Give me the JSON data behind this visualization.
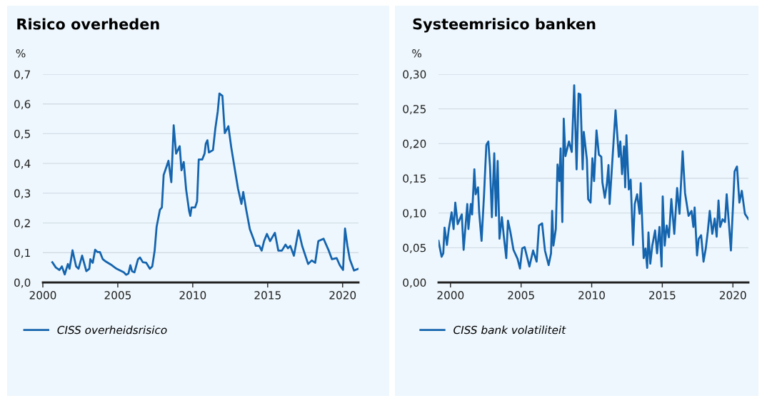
{
  "chart_data": [
    {
      "type": "line",
      "title": "Risico overheden",
      "ylabel": "%",
      "grid": "y",
      "legend": "bottom left",
      "marker": "none",
      "line_style": "solid",
      "xlim": [
        2000,
        2021.06
      ],
      "xticks": [
        2000,
        2005,
        2010,
        2015,
        2020
      ],
      "ylim": [
        0,
        0.7
      ],
      "yticks": [
        {
          "value": 0,
          "label": "0,0"
        },
        {
          "value": 0.1,
          "label": "0,1"
        },
        {
          "value": 0.2,
          "label": "0,2"
        },
        {
          "value": 0.3,
          "label": "0,3"
        },
        {
          "value": 0.4,
          "label": "0,4"
        },
        {
          "value": 0.5,
          "label": "0,5"
        },
        {
          "value": 0.6,
          "label": "0,6"
        },
        {
          "value": 0.7,
          "label": "0,7"
        }
      ],
      "series": [
        {
          "name": "CISS overheidsrisico",
          "color": "#1464ae",
          "x": [
            2000.63,
            2000.87,
            2001.11,
            2001.27,
            2001.46,
            2001.67,
            2001.78,
            2001.98,
            2002.22,
            2002.38,
            2002.62,
            2002.75,
            2002.9,
            2003.1,
            2003.17,
            2003.33,
            2003.49,
            2003.65,
            2003.81,
            2004.0,
            2004.21,
            2004.6,
            2004.92,
            2005.4,
            2005.56,
            2005.71,
            2005.84,
            2005.95,
            2006.11,
            2006.35,
            2006.48,
            2006.67,
            2006.9,
            2007.14,
            2007.3,
            2007.46,
            2007.59,
            2007.81,
            2007.94,
            2008.06,
            2008.25,
            2008.38,
            2008.57,
            2008.73,
            2008.89,
            2009.13,
            2009.25,
            2009.4,
            2009.56,
            2009.76,
            2009.84,
            2009.92,
            2010.16,
            2010.29,
            2010.4,
            2010.63,
            2010.79,
            2010.87,
            2010.98,
            2011.08,
            2011.35,
            2011.51,
            2011.67,
            2011.78,
            2011.98,
            2012.14,
            2012.38,
            2012.57,
            2012.78,
            2013.02,
            2013.25,
            2013.37,
            2013.57,
            2013.81,
            2014.05,
            2014.21,
            2014.44,
            2014.6,
            2014.76,
            2014.95,
            2015.16,
            2015.48,
            2015.71,
            2015.95,
            2016.19,
            2016.35,
            2016.51,
            2016.75,
            2017.06,
            2017.3,
            2017.7,
            2017.94,
            2018.17,
            2018.38,
            2018.73,
            2019.05,
            2019.29,
            2019.6,
            2019.81,
            2020.03,
            2020.16,
            2020.32,
            2020.48,
            2020.76,
            2021.06
          ],
          "values": [
            0.068,
            0.05,
            0.042,
            0.054,
            0.027,
            0.062,
            0.046,
            0.108,
            0.054,
            0.046,
            0.09,
            0.066,
            0.038,
            0.046,
            0.078,
            0.066,
            0.11,
            0.102,
            0.102,
            0.078,
            0.07,
            0.058,
            0.046,
            0.034,
            0.026,
            0.03,
            0.058,
            0.038,
            0.034,
            0.078,
            0.084,
            0.068,
            0.066,
            0.046,
            0.054,
            0.107,
            0.187,
            0.244,
            0.252,
            0.361,
            0.389,
            0.409,
            0.337,
            0.528,
            0.433,
            0.458,
            0.377,
            0.405,
            0.312,
            0.24,
            0.224,
            0.252,
            0.252,
            0.272,
            0.413,
            0.413,
            0.433,
            0.466,
            0.478,
            0.437,
            0.445,
            0.518,
            0.575,
            0.635,
            0.627,
            0.502,
            0.525,
            0.454,
            0.389,
            0.316,
            0.264,
            0.304,
            0.244,
            0.179,
            0.147,
            0.123,
            0.123,
            0.107,
            0.139,
            0.163,
            0.139,
            0.167,
            0.107,
            0.107,
            0.127,
            0.115,
            0.123,
            0.09,
            0.175,
            0.123,
            0.062,
            0.074,
            0.066,
            0.139,
            0.147,
            0.11,
            0.078,
            0.082,
            0.058,
            0.042,
            0.181,
            0.123,
            0.078,
            0.04,
            0.046
          ]
        }
      ]
    },
    {
      "type": "line",
      "title": "Systeemrisico banken",
      "ylabel": "%",
      "grid": "y",
      "legend": "bottom left",
      "marker": "none",
      "line_style": "solid",
      "xlim": [
        1999.15,
        2021.1
      ],
      "xticks": [
        2000,
        2005,
        2010,
        2015,
        2020
      ],
      "ylim": [
        0,
        0.3
      ],
      "yticks": [
        {
          "value": 0,
          "label": "0,00"
        },
        {
          "value": 0.05,
          "label": "0,05"
        },
        {
          "value": 0.1,
          "label": "0,10"
        },
        {
          "value": 0.15,
          "label": "0,15"
        },
        {
          "value": 0.2,
          "label": "0,20"
        },
        {
          "value": 0.25,
          "label": "0,25"
        },
        {
          "value": 0.3,
          "label": "0,30"
        }
      ],
      "series": [
        {
          "name": "CISS bank volatiliteit",
          "color": "#1464ae",
          "x": [
            1999.15,
            1999.37,
            1999.49,
            1999.58,
            1999.75,
            1999.88,
            2000.08,
            2000.22,
            2000.34,
            2000.51,
            2000.8,
            2000.93,
            2001.19,
            2001.27,
            2001.44,
            2001.53,
            2001.69,
            2001.78,
            2001.95,
            2002.03,
            2002.2,
            2002.37,
            2002.54,
            2002.68,
            2002.8,
            2002.93,
            2003.1,
            2003.22,
            2003.34,
            2003.47,
            2003.64,
            2003.78,
            2003.95,
            2004.07,
            2004.24,
            2004.46,
            2004.75,
            2004.92,
            2005.08,
            2005.25,
            2005.59,
            2005.85,
            2006.1,
            2006.27,
            2006.49,
            2006.69,
            2006.95,
            2007.12,
            2007.2,
            2007.29,
            2007.46,
            2007.58,
            2007.71,
            2007.8,
            2007.92,
            2008.02,
            2008.14,
            2008.39,
            2008.59,
            2008.76,
            2008.93,
            2009.07,
            2009.2,
            2009.36,
            2009.44,
            2009.66,
            2009.75,
            2009.92,
            2010.05,
            2010.17,
            2010.34,
            2010.51,
            2010.68,
            2010.76,
            2010.93,
            2011.07,
            2011.19,
            2011.27,
            2011.69,
            2011.92,
            2012.03,
            2012.15,
            2012.29,
            2012.37,
            2012.46,
            2012.63,
            2012.76,
            2012.93,
            2013.05,
            2013.22,
            2013.39,
            2013.47,
            2013.68,
            2013.81,
            2013.93,
            2014.02,
            2014.15,
            2014.29,
            2014.49,
            2014.63,
            2014.8,
            2014.95,
            2015.03,
            2015.17,
            2015.31,
            2015.47,
            2015.64,
            2015.85,
            2016.05,
            2016.22,
            2016.44,
            2016.61,
            2016.86,
            2017.07,
            2017.2,
            2017.29,
            2017.46,
            2017.58,
            2017.75,
            2017.92,
            2018.08,
            2018.22,
            2018.36,
            2018.54,
            2018.71,
            2018.85,
            2018.98,
            2019.1,
            2019.27,
            2019.44,
            2019.56,
            2019.86,
            2020.12,
            2020.29,
            2020.46,
            2020.63,
            2020.85,
            2021.1
          ],
          "values": [
            0.06,
            0.037,
            0.042,
            0.079,
            0.054,
            0.077,
            0.101,
            0.077,
            0.115,
            0.084,
            0.098,
            0.047,
            0.113,
            0.077,
            0.113,
            0.098,
            0.163,
            0.127,
            0.137,
            0.101,
            0.06,
            0.124,
            0.198,
            0.203,
            0.167,
            0.094,
            0.186,
            0.096,
            0.175,
            0.063,
            0.094,
            0.066,
            0.035,
            0.089,
            0.073,
            0.047,
            0.034,
            0.02,
            0.049,
            0.051,
            0.023,
            0.046,
            0.03,
            0.082,
            0.085,
            0.046,
            0.025,
            0.042,
            0.103,
            0.053,
            0.077,
            0.17,
            0.146,
            0.193,
            0.087,
            0.236,
            0.182,
            0.203,
            0.188,
            0.284,
            0.163,
            0.272,
            0.271,
            0.163,
            0.217,
            0.177,
            0.12,
            0.115,
            0.179,
            0.146,
            0.219,
            0.184,
            0.181,
            0.144,
            0.122,
            0.141,
            0.169,
            0.113,
            0.248,
            0.181,
            0.203,
            0.156,
            0.196,
            0.137,
            0.212,
            0.134,
            0.148,
            0.054,
            0.113,
            0.127,
            0.099,
            0.143,
            0.035,
            0.049,
            0.021,
            0.072,
            0.027,
            0.053,
            0.075,
            0.042,
            0.08,
            0.023,
            0.124,
            0.053,
            0.082,
            0.065,
            0.12,
            0.07,
            0.136,
            0.099,
            0.189,
            0.129,
            0.096,
            0.103,
            0.08,
            0.108,
            0.039,
            0.063,
            0.068,
            0.03,
            0.049,
            0.073,
            0.103,
            0.07,
            0.092,
            0.066,
            0.118,
            0.08,
            0.091,
            0.087,
            0.127,
            0.046,
            0.16,
            0.167,
            0.115,
            0.132,
            0.099,
            0.091
          ]
        }
      ]
    }
  ]
}
